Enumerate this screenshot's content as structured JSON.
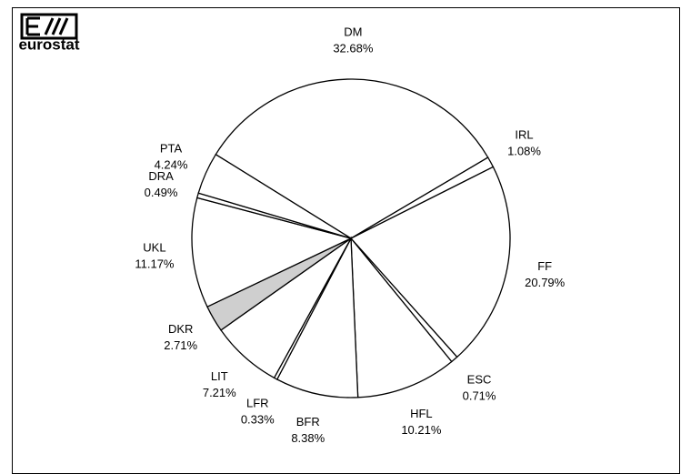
{
  "chart_data": {
    "type": "pie",
    "logo": "eurostat",
    "categories": [
      "DM",
      "IRL",
      "FF",
      "ESC",
      "HFL",
      "BFR",
      "LFR",
      "LIT",
      "DKR",
      "UKL",
      "DRA",
      "PTA"
    ],
    "values": [
      32.68,
      1.08,
      20.79,
      0.71,
      10.21,
      8.38,
      0.33,
      7.21,
      2.71,
      11.17,
      0.49,
      4.24
    ],
    "value_labels": [
      "32.68%",
      "1.08%",
      "20.79%",
      "0.71%",
      "10.21%",
      "8.38%",
      "0.33%",
      "7.21%",
      "2.71%",
      "11.17%",
      "0.49%",
      "4.24%"
    ],
    "colors": [
      "#ffffff",
      "#ffffff",
      "#ffffff",
      "#ffffff",
      "#ffffff",
      "#ffffff",
      "#ffffff",
      "#ffffff",
      "#cfcfcf",
      "#ffffff",
      "#ffffff",
      "#ffffff"
    ]
  }
}
